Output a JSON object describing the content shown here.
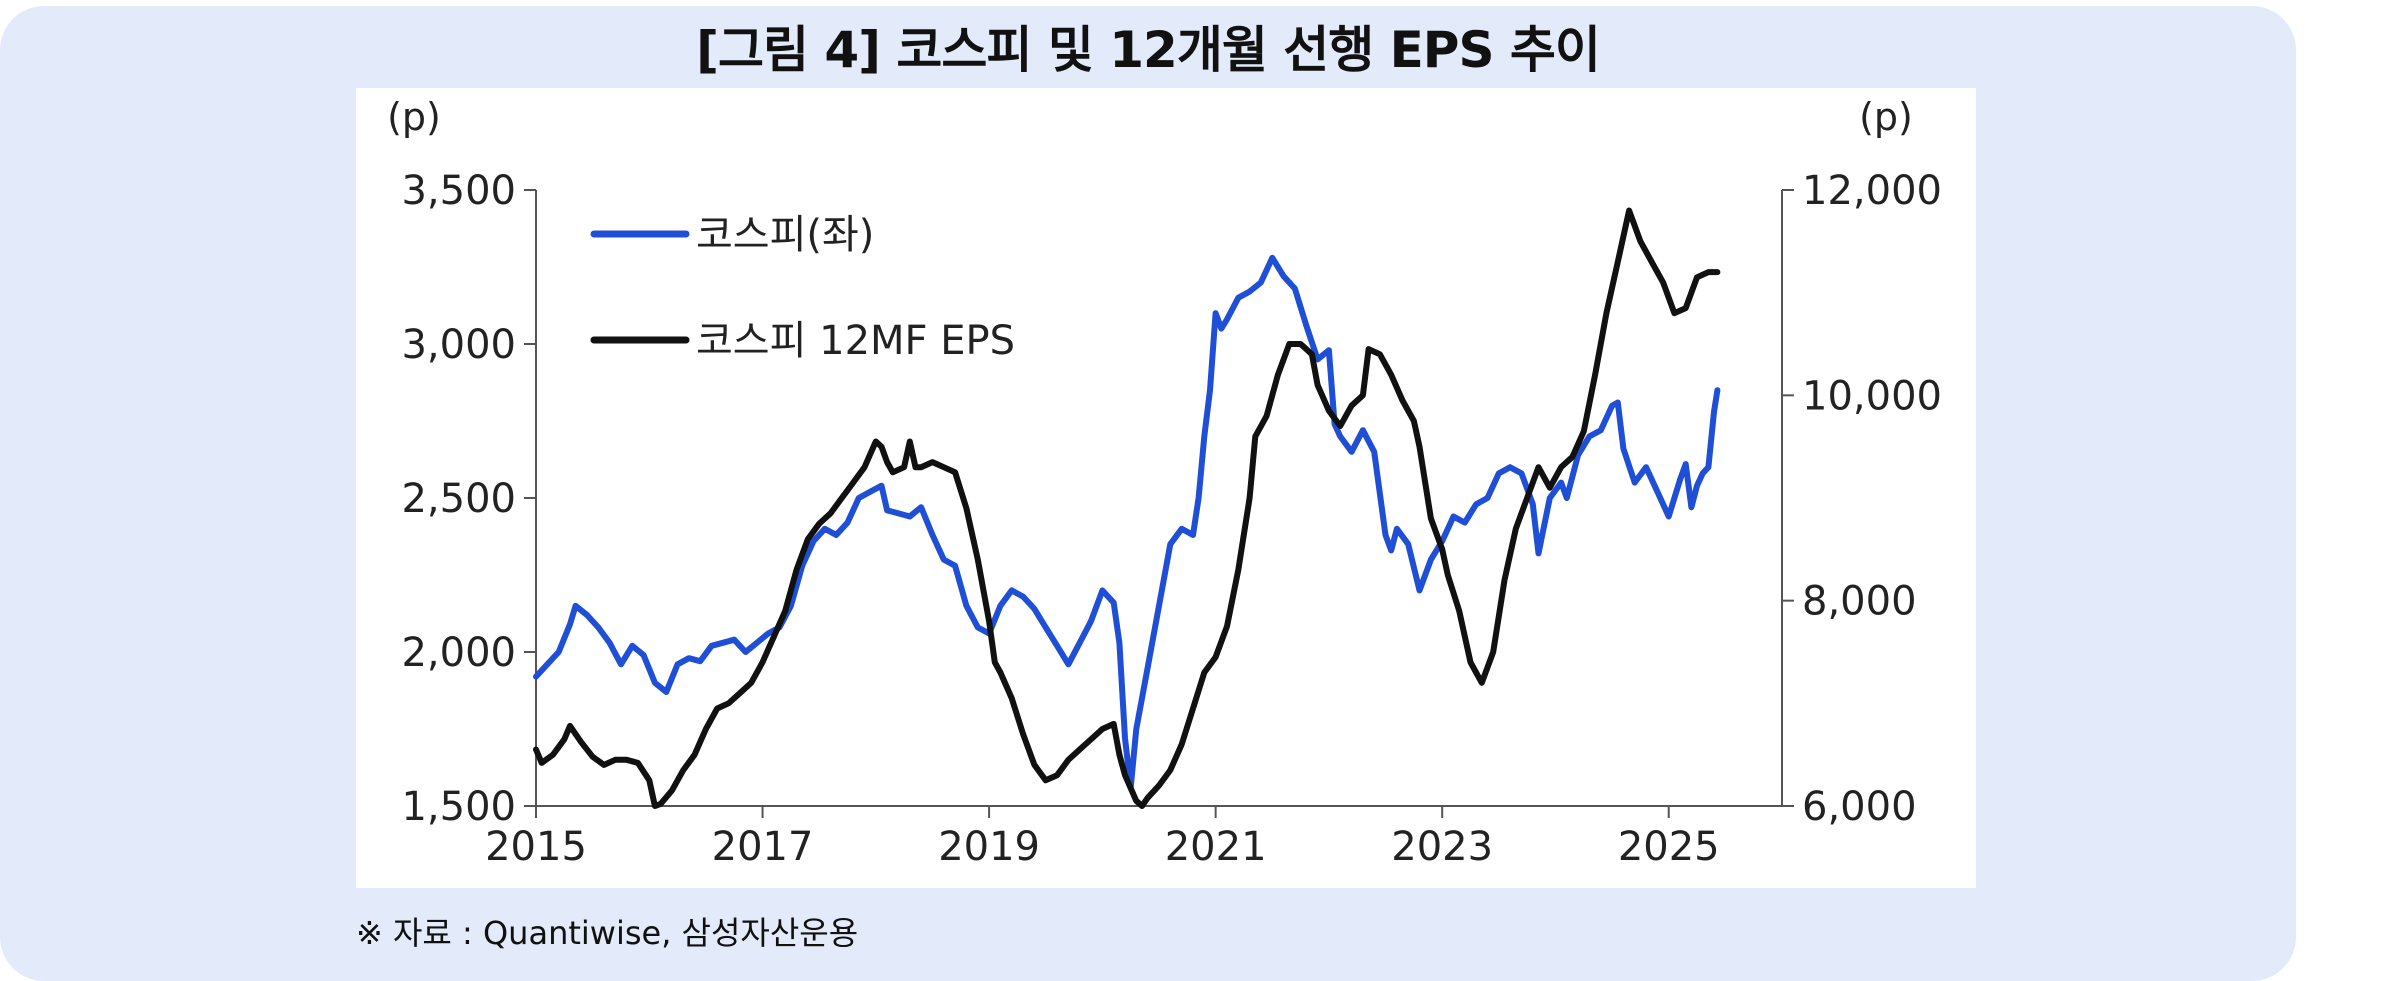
{
  "title": "[그림 4] 코스피 및 12개월 선행 EPS 추이",
  "source": "※ 자료 : Quantiwise, 삼성자산운용",
  "chart_data": {
    "type": "line",
    "left_axis": {
      "unit": "(p)",
      "range": [
        1500,
        3500
      ],
      "ticks": [
        "1,500",
        "2,000",
        "2,500",
        "3,000",
        "3,500"
      ]
    },
    "right_axis": {
      "unit": "(p)",
      "range": [
        6000,
        12000
      ],
      "ticks": [
        "6,000",
        "8,000",
        "10,000",
        "12,000"
      ]
    },
    "x_axis": {
      "range": [
        2015,
        2026
      ],
      "ticks": [
        "2015",
        "2017",
        "2019",
        "2021",
        "2023",
        "2025"
      ]
    },
    "series": [
      {
        "name": "코스피(좌)",
        "axis": "left",
        "color": "#1f4fd6",
        "points": [
          [
            2015.0,
            1920
          ],
          [
            2015.1,
            1960
          ],
          [
            2015.2,
            2000
          ],
          [
            2015.3,
            2090
          ],
          [
            2015.35,
            2150
          ],
          [
            2015.45,
            2120
          ],
          [
            2015.55,
            2080
          ],
          [
            2015.65,
            2030
          ],
          [
            2015.75,
            1960
          ],
          [
            2015.85,
            2020
          ],
          [
            2015.95,
            1990
          ],
          [
            2016.05,
            1900
          ],
          [
            2016.15,
            1870
          ],
          [
            2016.25,
            1960
          ],
          [
            2016.35,
            1980
          ],
          [
            2016.45,
            1970
          ],
          [
            2016.55,
            2020
          ],
          [
            2016.65,
            2030
          ],
          [
            2016.75,
            2040
          ],
          [
            2016.85,
            2000
          ],
          [
            2016.95,
            2030
          ],
          [
            2017.05,
            2060
          ],
          [
            2017.15,
            2080
          ],
          [
            2017.25,
            2150
          ],
          [
            2017.35,
            2280
          ],
          [
            2017.45,
            2360
          ],
          [
            2017.55,
            2400
          ],
          [
            2017.65,
            2380
          ],
          [
            2017.75,
            2420
          ],
          [
            2017.85,
            2500
          ],
          [
            2017.95,
            2520
          ],
          [
            2018.05,
            2540
          ],
          [
            2018.1,
            2460
          ],
          [
            2018.2,
            2450
          ],
          [
            2018.3,
            2440
          ],
          [
            2018.4,
            2470
          ],
          [
            2018.5,
            2380
          ],
          [
            2018.6,
            2300
          ],
          [
            2018.7,
            2280
          ],
          [
            2018.8,
            2150
          ],
          [
            2018.9,
            2080
          ],
          [
            2019.0,
            2060
          ],
          [
            2019.1,
            2150
          ],
          [
            2019.2,
            2200
          ],
          [
            2019.3,
            2180
          ],
          [
            2019.4,
            2140
          ],
          [
            2019.5,
            2080
          ],
          [
            2019.6,
            2020
          ],
          [
            2019.7,
            1960
          ],
          [
            2019.8,
            2030
          ],
          [
            2019.9,
            2100
          ],
          [
            2020.0,
            2200
          ],
          [
            2020.1,
            2160
          ],
          [
            2020.15,
            2030
          ],
          [
            2020.2,
            1720
          ],
          [
            2020.25,
            1560
          ],
          [
            2020.3,
            1750
          ],
          [
            2020.4,
            1950
          ],
          [
            2020.5,
            2150
          ],
          [
            2020.6,
            2350
          ],
          [
            2020.7,
            2400
          ],
          [
            2020.8,
            2380
          ],
          [
            2020.85,
            2500
          ],
          [
            2020.9,
            2700
          ],
          [
            2020.95,
            2850
          ],
          [
            2021.0,
            3100
          ],
          [
            2021.05,
            3050
          ],
          [
            2021.1,
            3080
          ],
          [
            2021.2,
            3150
          ],
          [
            2021.3,
            3170
          ],
          [
            2021.4,
            3200
          ],
          [
            2021.5,
            3280
          ],
          [
            2021.6,
            3220
          ],
          [
            2021.7,
            3180
          ],
          [
            2021.8,
            3060
          ],
          [
            2021.9,
            2950
          ],
          [
            2022.0,
            2980
          ],
          [
            2022.05,
            2740
          ],
          [
            2022.1,
            2700
          ],
          [
            2022.2,
            2650
          ],
          [
            2022.3,
            2720
          ],
          [
            2022.4,
            2650
          ],
          [
            2022.5,
            2380
          ],
          [
            2022.55,
            2330
          ],
          [
            2022.6,
            2400
          ],
          [
            2022.7,
            2350
          ],
          [
            2022.8,
            2200
          ],
          [
            2022.9,
            2300
          ],
          [
            2023.0,
            2360
          ],
          [
            2023.1,
            2440
          ],
          [
            2023.2,
            2420
          ],
          [
            2023.3,
            2480
          ],
          [
            2023.4,
            2500
          ],
          [
            2023.5,
            2580
          ],
          [
            2023.6,
            2600
          ],
          [
            2023.7,
            2580
          ],
          [
            2023.8,
            2480
          ],
          [
            2023.85,
            2320
          ],
          [
            2023.95,
            2500
          ],
          [
            2024.05,
            2550
          ],
          [
            2024.1,
            2500
          ],
          [
            2024.2,
            2640
          ],
          [
            2024.3,
            2700
          ],
          [
            2024.4,
            2720
          ],
          [
            2024.5,
            2800
          ],
          [
            2024.55,
            2810
          ],
          [
            2024.6,
            2660
          ],
          [
            2024.7,
            2550
          ],
          [
            2024.8,
            2600
          ],
          [
            2024.9,
            2520
          ],
          [
            2025.0,
            2440
          ],
          [
            2025.1,
            2560
          ],
          [
            2025.15,
            2610
          ],
          [
            2025.2,
            2470
          ],
          [
            2025.25,
            2540
          ],
          [
            2025.3,
            2580
          ],
          [
            2025.35,
            2600
          ],
          [
            2025.4,
            2780
          ],
          [
            2025.43,
            2850
          ]
        ]
      },
      {
        "name": "코스피 12MF EPS",
        "axis": "right",
        "color": "#111111",
        "points": [
          [
            2015.0,
            6550
          ],
          [
            2015.05,
            6420
          ],
          [
            2015.15,
            6500
          ],
          [
            2015.25,
            6650
          ],
          [
            2015.3,
            6780
          ],
          [
            2015.4,
            6620
          ],
          [
            2015.5,
            6480
          ],
          [
            2015.6,
            6400
          ],
          [
            2015.7,
            6450
          ],
          [
            2015.8,
            6450
          ],
          [
            2015.9,
            6420
          ],
          [
            2016.0,
            6250
          ],
          [
            2016.05,
            6000
          ],
          [
            2016.1,
            6020
          ],
          [
            2016.2,
            6150
          ],
          [
            2016.3,
            6350
          ],
          [
            2016.4,
            6500
          ],
          [
            2016.5,
            6750
          ],
          [
            2016.6,
            6950
          ],
          [
            2016.7,
            7000
          ],
          [
            2016.8,
            7100
          ],
          [
            2016.9,
            7200
          ],
          [
            2017.0,
            7400
          ],
          [
            2017.1,
            7650
          ],
          [
            2017.2,
            7900
          ],
          [
            2017.3,
            8300
          ],
          [
            2017.4,
            8600
          ],
          [
            2017.5,
            8750
          ],
          [
            2017.6,
            8850
          ],
          [
            2017.7,
            9000
          ],
          [
            2017.8,
            9150
          ],
          [
            2017.9,
            9300
          ],
          [
            2018.0,
            9550
          ],
          [
            2018.05,
            9500
          ],
          [
            2018.1,
            9350
          ],
          [
            2018.15,
            9250
          ],
          [
            2018.25,
            9300
          ],
          [
            2018.3,
            9550
          ],
          [
            2018.35,
            9300
          ],
          [
            2018.4,
            9300
          ],
          [
            2018.5,
            9350
          ],
          [
            2018.6,
            9300
          ],
          [
            2018.7,
            9250
          ],
          [
            2018.8,
            8900
          ],
          [
            2018.9,
            8400
          ],
          [
            2019.0,
            7800
          ],
          [
            2019.05,
            7400
          ],
          [
            2019.1,
            7300
          ],
          [
            2019.2,
            7050
          ],
          [
            2019.3,
            6700
          ],
          [
            2019.4,
            6400
          ],
          [
            2019.5,
            6250
          ],
          [
            2019.6,
            6300
          ],
          [
            2019.7,
            6450
          ],
          [
            2019.8,
            6550
          ],
          [
            2019.9,
            6650
          ],
          [
            2020.0,
            6750
          ],
          [
            2020.1,
            6800
          ],
          [
            2020.15,
            6500
          ],
          [
            2020.2,
            6300
          ],
          [
            2020.3,
            6050
          ],
          [
            2020.35,
            6000
          ],
          [
            2020.4,
            6080
          ],
          [
            2020.5,
            6200
          ],
          [
            2020.6,
            6350
          ],
          [
            2020.7,
            6600
          ],
          [
            2020.8,
            6950
          ],
          [
            2020.9,
            7300
          ],
          [
            2021.0,
            7450
          ],
          [
            2021.1,
            7750
          ],
          [
            2021.2,
            8300
          ],
          [
            2021.3,
            9000
          ],
          [
            2021.35,
            9600
          ],
          [
            2021.45,
            9800
          ],
          [
            2021.55,
            10200
          ],
          [
            2021.65,
            10500
          ],
          [
            2021.75,
            10500
          ],
          [
            2021.8,
            10450
          ],
          [
            2021.85,
            10400
          ],
          [
            2021.9,
            10100
          ],
          [
            2022.0,
            9850
          ],
          [
            2022.1,
            9700
          ],
          [
            2022.2,
            9900
          ],
          [
            2022.3,
            10000
          ],
          [
            2022.35,
            10450
          ],
          [
            2022.45,
            10400
          ],
          [
            2022.55,
            10200
          ],
          [
            2022.65,
            9950
          ],
          [
            2022.75,
            9750
          ],
          [
            2022.8,
            9500
          ],
          [
            2022.9,
            8800
          ],
          [
            2023.0,
            8500
          ],
          [
            2023.05,
            8250
          ],
          [
            2023.15,
            7900
          ],
          [
            2023.25,
            7400
          ],
          [
            2023.35,
            7200
          ],
          [
            2023.45,
            7500
          ],
          [
            2023.55,
            8200
          ],
          [
            2023.65,
            8700
          ],
          [
            2023.75,
            9000
          ],
          [
            2023.85,
            9300
          ],
          [
            2023.95,
            9100
          ],
          [
            2024.05,
            9300
          ],
          [
            2024.15,
            9400
          ],
          [
            2024.25,
            9650
          ],
          [
            2024.35,
            10200
          ],
          [
            2024.45,
            10800
          ],
          [
            2024.55,
            11300
          ],
          [
            2024.65,
            11800
          ],
          [
            2024.75,
            11500
          ],
          [
            2024.85,
            11300
          ],
          [
            2024.95,
            11100
          ],
          [
            2025.05,
            10800
          ],
          [
            2025.15,
            10850
          ],
          [
            2025.25,
            11150
          ],
          [
            2025.35,
            11200
          ],
          [
            2025.43,
            11200
          ]
        ]
      }
    ],
    "legend": "top-left",
    "grid": false
  }
}
